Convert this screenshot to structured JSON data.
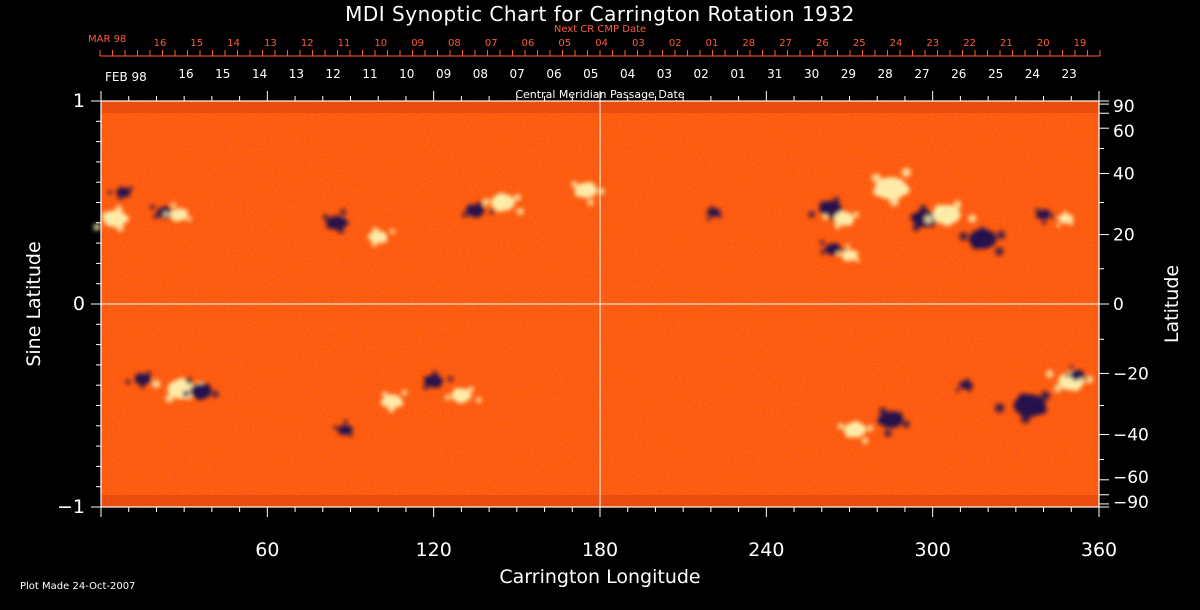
{
  "title": "MDI Synoptic Chart for Carrington Rotation 1932",
  "top_axis": {
    "next_cr_label": "Next CR CMP Date",
    "next_cr_month": "MAR 98",
    "next_cr_dates": [
      "16",
      "15",
      "14",
      "13",
      "12",
      "11",
      "10",
      "09",
      "08",
      "07",
      "06",
      "05",
      "04",
      "03",
      "02",
      "01",
      "28",
      "27",
      "26",
      "25",
      "24",
      "23",
      "22",
      "21",
      "20",
      "19"
    ],
    "cmp_month": "FEB 98",
    "cmp_dates": [
      "16",
      "15",
      "14",
      "13",
      "12",
      "11",
      "10",
      "09",
      "08",
      "07",
      "06",
      "05",
      "04",
      "03",
      "02",
      "01",
      "31",
      "30",
      "29",
      "28",
      "27",
      "26",
      "25",
      "24",
      "23"
    ],
    "cmp_label": "Central Meridian Passage Date"
  },
  "footer": {
    "plot_made": "Plot Made 24-Oct-2007"
  },
  "colors": {
    "background": "#000000",
    "field_base": "#ff5a14",
    "positive_polarity": "#fff2b0",
    "negative_polarity": "#1a0a50",
    "red_axis_text": "#ff5a3c",
    "guide_lines": "#ffffff"
  },
  "chart_data": {
    "type": "heatmap",
    "title": "MDI Synoptic Chart for Carrington Rotation 1932",
    "xlabel": "Carrington Longitude",
    "ylabel": "Sine Latitude",
    "ylabel_right": "Latitude",
    "xlim": [
      0,
      360
    ],
    "ylim": [
      -1,
      1
    ],
    "x_ticks": [
      60,
      120,
      180,
      240,
      300,
      360
    ],
    "y_ticks_left": [
      {
        "value": 1,
        "label": "1"
      },
      {
        "value": 0,
        "label": "0"
      },
      {
        "value": -1,
        "label": "−1"
      }
    ],
    "y_ticks_right": [
      {
        "value": 90,
        "label": "90"
      },
      {
        "value": 60,
        "label": "60"
      },
      {
        "value": 40,
        "label": "40"
      },
      {
        "value": 20,
        "label": "20"
      },
      {
        "value": 0,
        "label": "0"
      },
      {
        "value": -20,
        "label": "−20"
      },
      {
        "value": -40,
        "label": "−40"
      },
      {
        "value": -60,
        "label": "−60"
      },
      {
        "value": -90,
        "label": "−90"
      }
    ],
    "reference_lines": {
      "longitude": 180,
      "sine_latitude": 0
    },
    "active_regions": [
      {
        "lon": 5,
        "sinlat": 0.42,
        "polarity": "positive",
        "size": 12
      },
      {
        "lon": 8,
        "sinlat": 0.55,
        "polarity": "negative",
        "size": 7
      },
      {
        "lon": 23,
        "sinlat": 0.45,
        "polarity": "negative",
        "size": 8
      },
      {
        "lon": 28,
        "sinlat": 0.44,
        "polarity": "positive",
        "size": 9
      },
      {
        "lon": 85,
        "sinlat": 0.4,
        "polarity": "negative",
        "size": 10
      },
      {
        "lon": 100,
        "sinlat": 0.33,
        "polarity": "positive",
        "size": 9
      },
      {
        "lon": 135,
        "sinlat": 0.46,
        "polarity": "negative",
        "size": 9
      },
      {
        "lon": 145,
        "sinlat": 0.5,
        "polarity": "positive",
        "size": 12
      },
      {
        "lon": 175,
        "sinlat": 0.56,
        "polarity": "positive",
        "size": 11
      },
      {
        "lon": 221,
        "sinlat": 0.45,
        "polarity": "negative",
        "size": 6
      },
      {
        "lon": 263,
        "sinlat": 0.47,
        "polarity": "negative",
        "size": 11
      },
      {
        "lon": 268,
        "sinlat": 0.42,
        "polarity": "positive",
        "size": 10
      },
      {
        "lon": 264,
        "sinlat": 0.27,
        "polarity": "negative",
        "size": 8
      },
      {
        "lon": 270,
        "sinlat": 0.24,
        "polarity": "positive",
        "size": 8
      },
      {
        "lon": 285,
        "sinlat": 0.57,
        "polarity": "positive",
        "size": 16
      },
      {
        "lon": 297,
        "sinlat": 0.42,
        "polarity": "negative",
        "size": 12
      },
      {
        "lon": 305,
        "sinlat": 0.44,
        "polarity": "positive",
        "size": 14
      },
      {
        "lon": 318,
        "sinlat": 0.32,
        "polarity": "negative",
        "size": 14
      },
      {
        "lon": 340,
        "sinlat": 0.44,
        "polarity": "negative",
        "size": 7
      },
      {
        "lon": 348,
        "sinlat": 0.42,
        "polarity": "positive",
        "size": 7
      },
      {
        "lon": 15,
        "sinlat": -0.37,
        "polarity": "negative",
        "size": 8
      },
      {
        "lon": 29,
        "sinlat": -0.42,
        "polarity": "positive",
        "size": 14
      },
      {
        "lon": 36,
        "sinlat": -0.43,
        "polarity": "negative",
        "size": 11
      },
      {
        "lon": 88,
        "sinlat": -0.62,
        "polarity": "negative",
        "size": 7
      },
      {
        "lon": 105,
        "sinlat": -0.48,
        "polarity": "positive",
        "size": 10
      },
      {
        "lon": 120,
        "sinlat": -0.38,
        "polarity": "negative",
        "size": 9
      },
      {
        "lon": 130,
        "sinlat": -0.45,
        "polarity": "positive",
        "size": 10
      },
      {
        "lon": 272,
        "sinlat": -0.62,
        "polarity": "positive",
        "size": 11
      },
      {
        "lon": 285,
        "sinlat": -0.57,
        "polarity": "negative",
        "size": 12
      },
      {
        "lon": 312,
        "sinlat": -0.4,
        "polarity": "negative",
        "size": 6
      },
      {
        "lon": 335,
        "sinlat": -0.5,
        "polarity": "negative",
        "size": 16
      },
      {
        "lon": 350,
        "sinlat": -0.38,
        "polarity": "positive",
        "size": 13
      },
      {
        "lon": 352,
        "sinlat": -0.35,
        "polarity": "negative",
        "size": 7
      }
    ]
  }
}
